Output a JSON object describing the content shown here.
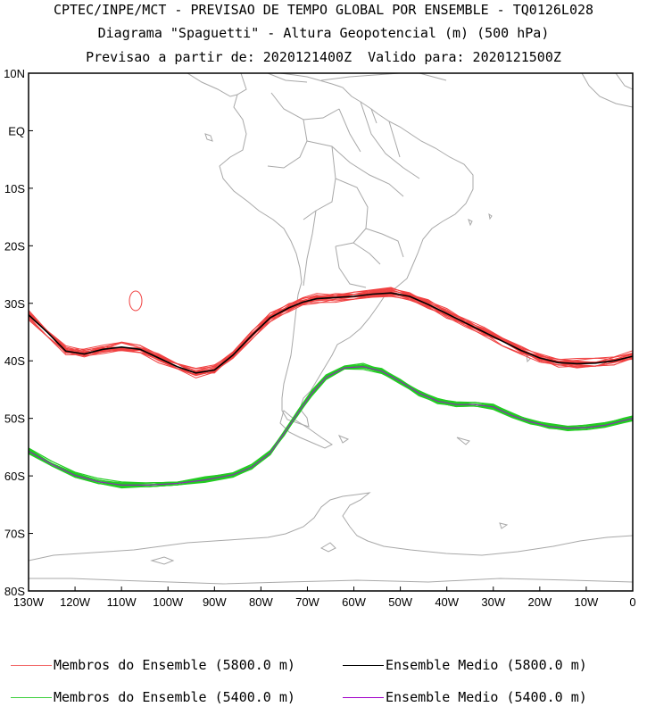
{
  "title": {
    "line1": "CPTEC/INPE/MCT - PREVISAO DE TEMPO GLOBAL POR ENSEMBLE - TQ0126L028",
    "line2": "Diagrama \"Spaguetti\" - Altura Geopotencial (m) (500 hPa)",
    "line3": "Previsao a partir de: 2020121400Z  Valido para: 2020121500Z"
  },
  "axes": {
    "lat_labels": [
      "10N",
      "EQ",
      "10S",
      "20S",
      "30S",
      "40S",
      "50S",
      "60S",
      "70S",
      "80S"
    ],
    "lon_labels": [
      "130W",
      "120W",
      "110W",
      "100W",
      "90W",
      "80W",
      "70W",
      "60W",
      "50W",
      "40W",
      "30W",
      "20W",
      "10W",
      "0"
    ]
  },
  "legend": [
    {
      "label": "Membros do Ensemble (5800.0 m)",
      "color": "#f26a6a"
    },
    {
      "label": "Ensemble Medio (5800.0 m)",
      "color": "#000000"
    },
    {
      "label": "Membros do Ensemble (5400.0 m)",
      "color": "#3ccf3c"
    },
    {
      "label": "Ensemble Medio (5400.0 m)",
      "color": "#a000c8"
    }
  ],
  "colors": {
    "member_5800": "#f04040",
    "mean_5800": "#000000",
    "member_5400": "#22cc22",
    "mean_5400": "#8a2bb0",
    "coastline": "#a8a8a8"
  }
}
